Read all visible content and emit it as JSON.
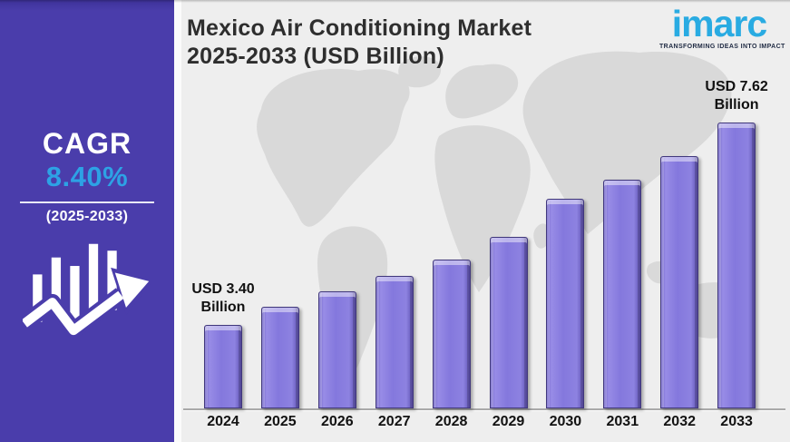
{
  "header": {
    "title": "Mexico Air Conditioning Market 2025-2033 (USD Billion)"
  },
  "logo": {
    "name": "imarc",
    "tagline": "TRANSFORMING IDEAS INTO IMPACT",
    "brand_color": "#29abe2"
  },
  "sidebar": {
    "cagr_label": "CAGR",
    "cagr_value": "8.40%",
    "cagr_period": "(2025-2033)",
    "panel_color": "#4a3dab",
    "value_color": "#2da2e5",
    "icon": "growth-bars-arrow-icon"
  },
  "chart_data": {
    "type": "bar",
    "title": "Mexico Air Conditioning Market 2025-2033 (USD Billion)",
    "categories": [
      "2024",
      "2025",
      "2026",
      "2027",
      "2028",
      "2029",
      "2030",
      "2031",
      "2032",
      "2033"
    ],
    "values": [
      3.4,
      3.78,
      4.1,
      4.42,
      4.76,
      5.24,
      6.03,
      6.43,
      6.92,
      7.62
    ],
    "values_note": "Only 2024 and 2033 carry printed labels; intermediate values estimated from bar heights",
    "data_labels": [
      {
        "category": "2024",
        "text": "USD 3.40 Billion"
      },
      {
        "category": "2033",
        "text": "USD 7.62 Billion"
      }
    ],
    "xlabel": "",
    "ylabel": "",
    "ylim": [
      0,
      8
    ],
    "grid": false,
    "legend": false,
    "bar_color": "#8478dd",
    "background_color": "#eeeeee",
    "map_color": "#d9d9d9"
  }
}
